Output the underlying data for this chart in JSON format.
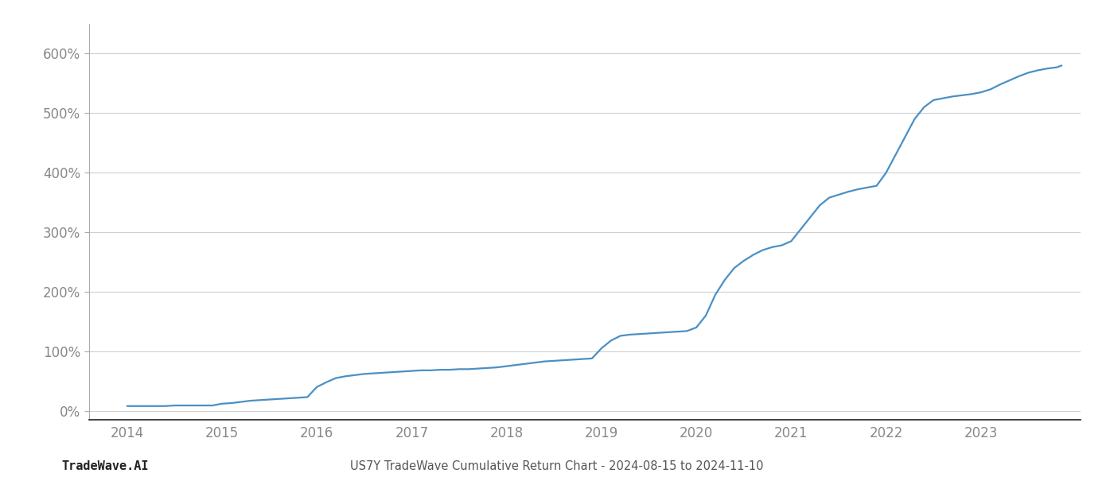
{
  "title": "US7Y TradeWave Cumulative Return Chart - 2024-08-15 to 2024-11-10",
  "watermark": "TradeWave.AI",
  "line_color": "#4a90c4",
  "background_color": "#ffffff",
  "grid_color": "#d0d0d0",
  "x_years": [
    2014.0,
    2014.1,
    2014.2,
    2014.3,
    2014.4,
    2014.5,
    2014.6,
    2014.7,
    2014.8,
    2014.9,
    2015.0,
    2015.1,
    2015.2,
    2015.3,
    2015.4,
    2015.5,
    2015.6,
    2015.7,
    2015.8,
    2015.9,
    2016.0,
    2016.1,
    2016.2,
    2016.3,
    2016.4,
    2016.5,
    2016.6,
    2016.7,
    2016.8,
    2016.9,
    2017.0,
    2017.1,
    2017.2,
    2017.3,
    2017.4,
    2017.5,
    2017.6,
    2017.7,
    2017.8,
    2017.9,
    2018.0,
    2018.1,
    2018.2,
    2018.3,
    2018.4,
    2018.5,
    2018.6,
    2018.7,
    2018.8,
    2018.9,
    2019.0,
    2019.1,
    2019.2,
    2019.3,
    2019.4,
    2019.5,
    2019.6,
    2019.7,
    2019.8,
    2019.9,
    2020.0,
    2020.1,
    2020.2,
    2020.3,
    2020.4,
    2020.5,
    2020.6,
    2020.7,
    2020.8,
    2020.9,
    2021.0,
    2021.1,
    2021.2,
    2021.3,
    2021.4,
    2021.5,
    2021.6,
    2021.7,
    2021.8,
    2021.9,
    2022.0,
    2022.1,
    2022.2,
    2022.3,
    2022.4,
    2022.5,
    2022.6,
    2022.7,
    2022.8,
    2022.9,
    2023.0,
    2023.1,
    2023.2,
    2023.3,
    2023.4,
    2023.5,
    2023.6,
    2023.7,
    2023.8,
    2023.85
  ],
  "y_values": [
    8,
    8,
    8,
    8,
    8,
    9,
    9,
    9,
    9,
    9,
    12,
    13,
    15,
    17,
    18,
    19,
    20,
    21,
    22,
    23,
    40,
    48,
    55,
    58,
    60,
    62,
    63,
    64,
    65,
    66,
    67,
    68,
    68,
    69,
    69,
    70,
    70,
    71,
    72,
    73,
    75,
    77,
    79,
    81,
    83,
    84,
    85,
    86,
    87,
    88,
    105,
    118,
    126,
    128,
    129,
    130,
    131,
    132,
    133,
    134,
    140,
    160,
    195,
    220,
    240,
    252,
    262,
    270,
    275,
    278,
    285,
    305,
    325,
    345,
    358,
    363,
    368,
    372,
    375,
    378,
    400,
    430,
    460,
    490,
    510,
    522,
    525,
    528,
    530,
    532,
    535,
    540,
    548,
    555,
    562,
    568,
    572,
    575,
    577,
    580
  ],
  "xlim": [
    2013.6,
    2024.05
  ],
  "ylim": [
    -15,
    650
  ],
  "yticks": [
    0,
    100,
    200,
    300,
    400,
    500,
    600
  ],
  "xticks": [
    2014,
    2015,
    2016,
    2017,
    2018,
    2019,
    2020,
    2021,
    2022,
    2023
  ],
  "title_fontsize": 10.5,
  "watermark_fontsize": 11,
  "tick_fontsize": 12,
  "line_width": 1.6
}
